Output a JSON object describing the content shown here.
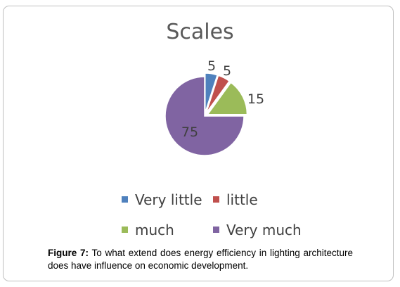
{
  "chart_data": {
    "type": "pie",
    "title": "Scales",
    "categories": [
      "Very little",
      "little",
      "much",
      "Very much"
    ],
    "values": [
      5,
      5,
      15,
      75
    ],
    "data_labels": [
      "5",
      "5",
      "15",
      "75"
    ],
    "colors": [
      "#4f81bd",
      "#c0504d",
      "#9bbb59",
      "#8064a2"
    ],
    "legend_placement": "bottom"
  },
  "caption": {
    "label": "Figure 7:",
    "text": " To what extend does energy efficiency in lighting architecture does have influence on economic development."
  }
}
